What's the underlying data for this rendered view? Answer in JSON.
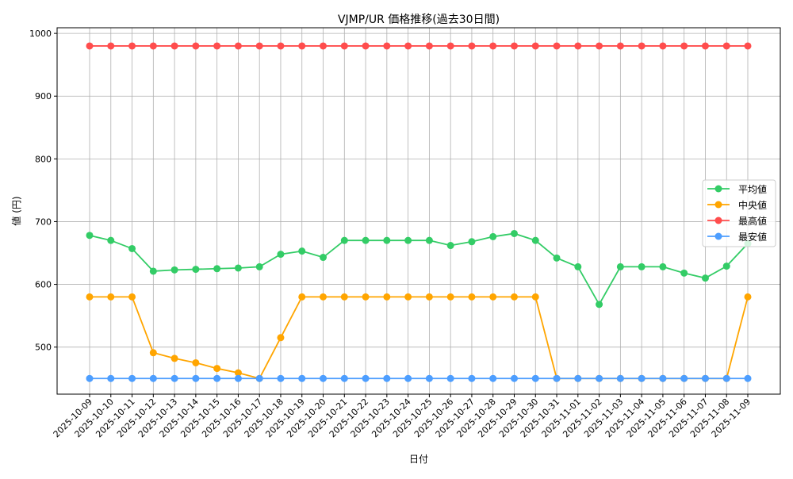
{
  "chart_data": {
    "type": "line",
    "title": "VJMP/UR 価格推移(過去30日間)",
    "xlabel": "日付",
    "ylabel": "値 (円)",
    "ylim": [
      425,
      1009
    ],
    "yticks": [
      500,
      600,
      700,
      800,
      900,
      1000
    ],
    "grid": true,
    "legend_placement": "center-right",
    "x": [
      "2025-10-09",
      "2025-10-10",
      "2025-10-11",
      "2025-10-12",
      "2025-10-13",
      "2025-10-14",
      "2025-10-15",
      "2025-10-16",
      "2025-10-17",
      "2025-10-18",
      "2025-10-19",
      "2025-10-20",
      "2025-10-21",
      "2025-10-22",
      "2025-10-23",
      "2025-10-24",
      "2025-10-25",
      "2025-10-26",
      "2025-10-27",
      "2025-10-28",
      "2025-10-29",
      "2025-10-30",
      "2025-10-31",
      "2025-11-01",
      "2025-11-02",
      "2025-11-03",
      "2025-11-04",
      "2025-11-05",
      "2025-11-06",
      "2025-11-07",
      "2025-11-08",
      "2025-11-09"
    ],
    "series": [
      {
        "name": "平均値",
        "color": "#33cc66",
        "values": [
          678,
          670,
          657,
          621,
          623,
          624,
          625,
          626,
          628,
          648,
          653,
          643,
          670,
          670,
          670,
          670,
          670,
          662,
          668,
          676,
          681,
          670,
          642,
          628,
          568,
          628,
          628,
          628,
          618,
          610,
          629,
          665
        ]
      },
      {
        "name": "中央値",
        "color": "#ffa500",
        "values": [
          580,
          580,
          580,
          491,
          482,
          475,
          466,
          459,
          450,
          515,
          580,
          580,
          580,
          580,
          580,
          580,
          580,
          580,
          580,
          580,
          580,
          580,
          450,
          450,
          450,
          450,
          450,
          450,
          450,
          450,
          450,
          580
        ]
      },
      {
        "name": "最高値",
        "color": "#ff4d4d",
        "values": [
          980,
          980,
          980,
          980,
          980,
          980,
          980,
          980,
          980,
          980,
          980,
          980,
          980,
          980,
          980,
          980,
          980,
          980,
          980,
          980,
          980,
          980,
          980,
          980,
          980,
          980,
          980,
          980,
          980,
          980,
          980,
          980
        ]
      },
      {
        "name": "最安値",
        "color": "#4d9eff",
        "values": [
          450,
          450,
          450,
          450,
          450,
          450,
          450,
          450,
          450,
          450,
          450,
          450,
          450,
          450,
          450,
          450,
          450,
          450,
          450,
          450,
          450,
          450,
          450,
          450,
          450,
          450,
          450,
          450,
          450,
          450,
          450,
          450
        ]
      }
    ]
  }
}
